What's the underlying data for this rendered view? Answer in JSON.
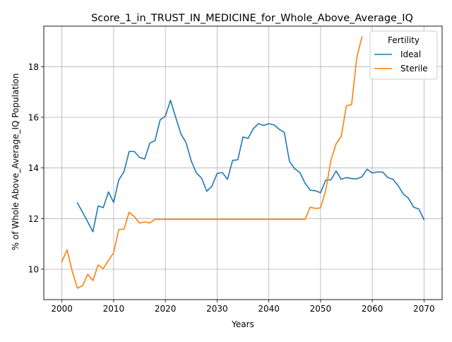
{
  "chart_data": {
    "type": "line",
    "title": "Score_1_in_TRUST_IN_MEDICINE_for_Whole_Above_Average_IQ",
    "xlabel": "Years",
    "ylabel": "% of Whole Above_Average_IQ Population",
    "xlim": [
      1996.5,
      2073.5
    ],
    "ylim": [
      8.8,
      19.6
    ],
    "xticks": [
      2000,
      2010,
      2020,
      2030,
      2040,
      2050,
      2060,
      2070
    ],
    "yticks": [
      10,
      12,
      14,
      16,
      18
    ],
    "grid": true,
    "legend": {
      "title": "Fertility",
      "position": "top-right"
    },
    "series": [
      {
        "name": "Ideal",
        "color": "#1f77b4",
        "x": [
          2003,
          2004,
          2005,
          2006,
          2007,
          2008,
          2009,
          2010,
          2011,
          2012,
          2013,
          2014,
          2015,
          2016,
          2017,
          2018,
          2019,
          2020,
          2021,
          2022,
          2023,
          2024,
          2025,
          2026,
          2027,
          2028,
          2029,
          2030,
          2031,
          2032,
          2033,
          2034,
          2035,
          2036,
          2037,
          2038,
          2039,
          2040,
          2041,
          2042,
          2043,
          2044,
          2045,
          2046,
          2047,
          2048,
          2049,
          2050,
          2051,
          2052,
          2053,
          2054,
          2055,
          2056,
          2057,
          2058,
          2059,
          2060,
          2061,
          2062,
          2063,
          2064,
          2065,
          2066,
          2067,
          2068,
          2069,
          2070
        ],
        "y": [
          12.62,
          12.25,
          11.87,
          11.48,
          12.5,
          12.43,
          13.05,
          12.64,
          13.53,
          13.85,
          14.65,
          14.65,
          14.42,
          14.35,
          14.98,
          15.08,
          15.9,
          16.05,
          16.67,
          16.0,
          15.35,
          15.0,
          14.28,
          13.8,
          13.6,
          13.08,
          13.28,
          13.78,
          13.82,
          13.55,
          14.3,
          14.32,
          15.22,
          15.17,
          15.55,
          15.75,
          15.68,
          15.75,
          15.7,
          15.53,
          15.4,
          14.25,
          13.97,
          13.82,
          13.4,
          13.12,
          13.1,
          13.02,
          13.52,
          13.53,
          13.88,
          13.55,
          13.62,
          13.58,
          13.57,
          13.65,
          13.95,
          13.8,
          13.84,
          13.84,
          13.62,
          13.55,
          13.3,
          12.97,
          12.8,
          12.45,
          12.38,
          11.96
        ]
      },
      {
        "name": "Sterile",
        "color": "#ff7f0e",
        "x": [
          2000,
          2001,
          2002,
          2003,
          2004,
          2005,
          2006,
          2007,
          2008,
          2009,
          2010,
          2011,
          2012,
          2013,
          2014,
          2015,
          2016,
          2017,
          2018,
          2019,
          2020,
          2021,
          2022,
          2023,
          2024,
          2025,
          2026,
          2027,
          2028,
          2029,
          2030,
          2031,
          2032,
          2033,
          2034,
          2035,
          2036,
          2037,
          2038,
          2039,
          2040,
          2041,
          2042,
          2043,
          2044,
          2045,
          2046,
          2047,
          2048,
          2049,
          2050,
          2051,
          2052,
          2053,
          2054,
          2055,
          2056,
          2057,
          2058
        ],
        "y": [
          10.3,
          10.77,
          9.92,
          9.25,
          9.35,
          9.8,
          9.55,
          10.17,
          10.02,
          10.35,
          10.65,
          11.57,
          11.58,
          12.25,
          12.08,
          11.82,
          11.87,
          11.83,
          11.97,
          11.97,
          11.97,
          11.97,
          11.97,
          11.97,
          11.97,
          11.97,
          11.97,
          11.97,
          11.97,
          11.97,
          11.97,
          11.97,
          11.97,
          11.97,
          11.97,
          11.97,
          11.97,
          11.97,
          11.97,
          11.97,
          11.97,
          11.97,
          11.97,
          11.97,
          11.97,
          11.97,
          11.97,
          11.97,
          12.45,
          12.4,
          12.42,
          13.1,
          14.3,
          14.95,
          15.25,
          16.45,
          16.5,
          18.35,
          19.18
        ]
      }
    ]
  }
}
